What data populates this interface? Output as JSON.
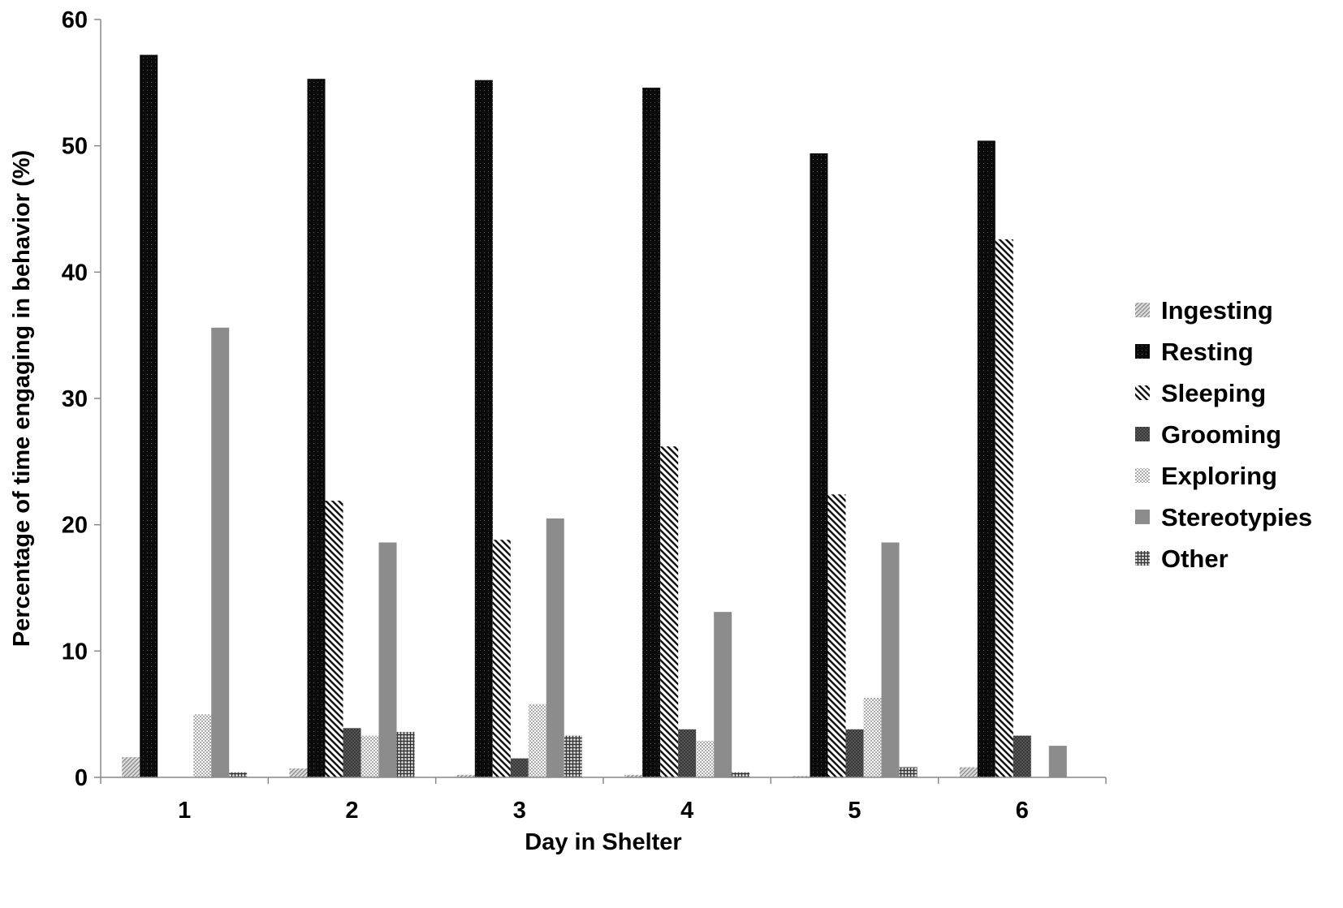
{
  "chart_data": {
    "type": "bar",
    "xlabel": "Day in Shelter",
    "ylabel": "Percentage of time engaging in behavior (%)",
    "ylim": [
      0,
      60
    ],
    "yticks": [
      0,
      10,
      20,
      30,
      40,
      50,
      60
    ],
    "categories": [
      "1",
      "2",
      "3",
      "4",
      "5",
      "6"
    ],
    "legend_position": "right",
    "grid": false,
    "series": [
      {
        "name": "Ingesting",
        "pattern": "pat-ingesting",
        "values": [
          1.6,
          0.7,
          0.2,
          0.2,
          0.1,
          0.8
        ]
      },
      {
        "name": "Resting",
        "pattern": "pat-resting",
        "values": [
          57.2,
          55.3,
          55.2,
          54.6,
          49.4,
          50.4
        ]
      },
      {
        "name": "Sleeping",
        "pattern": "pat-sleeping",
        "values": [
          0,
          21.9,
          18.8,
          26.2,
          22.4,
          42.6
        ]
      },
      {
        "name": "Grooming",
        "pattern": "pat-grooming",
        "values": [
          0,
          3.9,
          1.5,
          3.8,
          3.8,
          3.3
        ]
      },
      {
        "name": "Exploring",
        "pattern": "pat-exploring",
        "values": [
          5.0,
          3.3,
          5.8,
          2.9,
          6.3,
          0
        ]
      },
      {
        "name": "Stereotypies",
        "pattern": "pat-stereotypies",
        "values": [
          35.6,
          18.6,
          20.5,
          13.1,
          18.6,
          2.5
        ]
      },
      {
        "name": "Other",
        "pattern": "pat-other",
        "values": [
          0.4,
          3.6,
          3.3,
          0.4,
          0.8,
          0
        ]
      }
    ]
  }
}
